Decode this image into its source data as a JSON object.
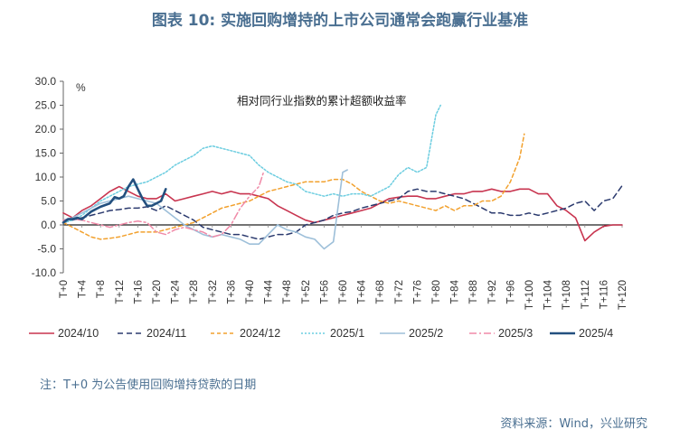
{
  "title": "图表 10: 实施回购增持的上市公司通常会跑赢行业基准",
  "note": "注：T+0 为公告使用回购增持贷款的日期",
  "source": "资料来源：Wind，兴业研究",
  "chart_data": {
    "type": "line",
    "title": "",
    "annotation": "相对同行业指数的累计超额收益率",
    "unit_label": "%",
    "ylim": [
      -10,
      30
    ],
    "yticks": [
      "30.0",
      "25.0",
      "20.0",
      "15.0",
      "10.0",
      "5.0",
      "0.0",
      "-5.0",
      "-10.0"
    ],
    "xlim": [
      0,
      120
    ],
    "xtick_labels": [
      "T+0",
      "T+4",
      "T+8",
      "T+12",
      "T+16",
      "T+20",
      "T+24",
      "T+28",
      "T+32",
      "T+36",
      "T+40",
      "T+44",
      "T+48",
      "T+52",
      "T+56",
      "T+60",
      "T+64",
      "T+68",
      "T+72",
      "T+76",
      "T+80",
      "T+84",
      "T+88",
      "T+92",
      "T+96",
      "T+100",
      "T+104",
      "T+108",
      "T+112",
      "T+116",
      "T+120"
    ],
    "grid": false,
    "legend_position": "bottom",
    "series": [
      {
        "name": "2024/10",
        "color": "#c8344f",
        "dash": "solid",
        "width": 1.6,
        "points": [
          [
            0,
            2.5
          ],
          [
            2,
            1.5
          ],
          [
            4,
            3
          ],
          [
            6,
            4
          ],
          [
            8,
            5.5
          ],
          [
            10,
            7
          ],
          [
            12,
            8
          ],
          [
            14,
            7
          ],
          [
            16,
            6
          ],
          [
            18,
            5.5
          ],
          [
            20,
            5.5
          ],
          [
            22,
            6.5
          ],
          [
            24,
            5
          ],
          [
            26,
            5.5
          ],
          [
            28,
            6
          ],
          [
            30,
            6.5
          ],
          [
            32,
            7
          ],
          [
            34,
            6.5
          ],
          [
            36,
            7
          ],
          [
            38,
            6.5
          ],
          [
            40,
            6.5
          ],
          [
            42,
            6
          ],
          [
            44,
            5.5
          ],
          [
            46,
            4
          ],
          [
            48,
            3
          ],
          [
            50,
            2
          ],
          [
            52,
            1
          ],
          [
            54,
            0.5
          ],
          [
            56,
            1
          ],
          [
            58,
            1.5
          ],
          [
            60,
            2
          ],
          [
            62,
            2.5
          ],
          [
            64,
            3
          ],
          [
            66,
            3.5
          ],
          [
            68,
            4.5
          ],
          [
            70,
            5.5
          ],
          [
            72,
            5.8
          ],
          [
            74,
            6
          ],
          [
            76,
            6
          ],
          [
            78,
            5.5
          ],
          [
            80,
            5.5
          ],
          [
            82,
            6
          ],
          [
            84,
            6.5
          ],
          [
            86,
            6.5
          ],
          [
            88,
            7
          ],
          [
            90,
            7
          ],
          [
            92,
            7.5
          ],
          [
            94,
            7
          ],
          [
            96,
            7
          ],
          [
            98,
            7.5
          ],
          [
            100,
            7.5
          ],
          [
            102,
            6.5
          ],
          [
            104,
            6.5
          ],
          [
            106,
            4
          ],
          [
            108,
            3
          ],
          [
            110,
            1.5
          ],
          [
            112,
            -3.3
          ],
          [
            114,
            -1.5
          ],
          [
            116,
            -0.3
          ],
          [
            118,
            0
          ],
          [
            120,
            0
          ]
        ]
      },
      {
        "name": "2024/11",
        "color": "#2b3a6e",
        "dash": "6,4",
        "width": 1.5,
        "points": [
          [
            0,
            0.5
          ],
          [
            2,
            1
          ],
          [
            4,
            1.5
          ],
          [
            6,
            2
          ],
          [
            8,
            2.5
          ],
          [
            10,
            3
          ],
          [
            12,
            3.2
          ],
          [
            14,
            3.5
          ],
          [
            16,
            3.5
          ],
          [
            18,
            3.8
          ],
          [
            20,
            3
          ],
          [
            22,
            4
          ],
          [
            24,
            3
          ],
          [
            26,
            2
          ],
          [
            28,
            1
          ],
          [
            30,
            -0.5
          ],
          [
            32,
            -1
          ],
          [
            34,
            -1.5
          ],
          [
            36,
            -2
          ],
          [
            38,
            -2
          ],
          [
            40,
            -2.5
          ],
          [
            42,
            -3
          ],
          [
            44,
            -2.5
          ],
          [
            46,
            -2
          ],
          [
            48,
            -2
          ],
          [
            50,
            -1.5
          ],
          [
            52,
            0
          ],
          [
            54,
            0.5
          ],
          [
            56,
            1
          ],
          [
            58,
            2
          ],
          [
            60,
            2.5
          ],
          [
            62,
            2.8
          ],
          [
            64,
            3.5
          ],
          [
            66,
            4
          ],
          [
            68,
            4.5
          ],
          [
            70,
            5
          ],
          [
            72,
            5.5
          ],
          [
            74,
            7
          ],
          [
            76,
            7.5
          ],
          [
            78,
            7
          ],
          [
            80,
            7
          ],
          [
            82,
            6.5
          ],
          [
            84,
            6
          ],
          [
            86,
            5.5
          ],
          [
            88,
            4.5
          ],
          [
            90,
            3.5
          ],
          [
            92,
            2.5
          ],
          [
            94,
            2.5
          ],
          [
            96,
            2
          ],
          [
            98,
            2
          ],
          [
            100,
            2.5
          ],
          [
            102,
            2
          ],
          [
            104,
            2.5
          ],
          [
            106,
            3
          ],
          [
            108,
            3.5
          ],
          [
            110,
            4.5
          ],
          [
            112,
            5
          ],
          [
            114,
            3
          ],
          [
            116,
            5
          ],
          [
            118,
            5.5
          ],
          [
            120,
            8.2
          ]
        ]
      },
      {
        "name": "2024/12",
        "color": "#f2a12e",
        "dash": "4,3",
        "width": 1.5,
        "points": [
          [
            0,
            0.5
          ],
          [
            2,
            -0.5
          ],
          [
            4,
            -1.5
          ],
          [
            6,
            -2.5
          ],
          [
            8,
            -3
          ],
          [
            10,
            -2.8
          ],
          [
            12,
            -2.5
          ],
          [
            14,
            -2
          ],
          [
            16,
            -1.5
          ],
          [
            18,
            -1.5
          ],
          [
            20,
            -1.5
          ],
          [
            22,
            -1
          ],
          [
            24,
            -0.5
          ],
          [
            26,
            0
          ],
          [
            28,
            0.5
          ],
          [
            30,
            1.5
          ],
          [
            32,
            2.5
          ],
          [
            34,
            3.5
          ],
          [
            36,
            4
          ],
          [
            38,
            4.5
          ],
          [
            40,
            5
          ],
          [
            42,
            6
          ],
          [
            44,
            7
          ],
          [
            46,
            7.5
          ],
          [
            48,
            8
          ],
          [
            50,
            8.5
          ],
          [
            52,
            9
          ],
          [
            54,
            9
          ],
          [
            56,
            9
          ],
          [
            58,
            9.5
          ],
          [
            60,
            9.5
          ],
          [
            62,
            8.5
          ],
          [
            64,
            7
          ],
          [
            66,
            6
          ],
          [
            68,
            5
          ],
          [
            70,
            4.5
          ],
          [
            72,
            5
          ],
          [
            74,
            4.5
          ],
          [
            76,
            4
          ],
          [
            78,
            3.5
          ],
          [
            80,
            3
          ],
          [
            82,
            4
          ],
          [
            84,
            3
          ],
          [
            86,
            4
          ],
          [
            88,
            4
          ],
          [
            90,
            5
          ],
          [
            92,
            5
          ],
          [
            94,
            6
          ],
          [
            96,
            9
          ],
          [
            98,
            14
          ],
          [
            99,
            19
          ]
        ]
      },
      {
        "name": "2025/1",
        "color": "#6ccde0",
        "dash": "2,2",
        "width": 1.5,
        "points": [
          [
            0,
            0.5
          ],
          [
            2,
            1
          ],
          [
            4,
            2
          ],
          [
            6,
            3.5
          ],
          [
            8,
            5
          ],
          [
            10,
            6
          ],
          [
            12,
            7
          ],
          [
            14,
            8
          ],
          [
            16,
            8.5
          ],
          [
            18,
            9
          ],
          [
            20,
            10
          ],
          [
            22,
            11
          ],
          [
            24,
            12.5
          ],
          [
            26,
            13.5
          ],
          [
            28,
            14.5
          ],
          [
            30,
            16
          ],
          [
            32,
            16.5
          ],
          [
            34,
            16
          ],
          [
            36,
            15.5
          ],
          [
            38,
            15
          ],
          [
            40,
            14.5
          ],
          [
            42,
            12.5
          ],
          [
            44,
            11
          ],
          [
            46,
            10
          ],
          [
            48,
            9
          ],
          [
            50,
            8.5
          ],
          [
            52,
            7
          ],
          [
            54,
            6.5
          ],
          [
            56,
            6
          ],
          [
            58,
            6.5
          ],
          [
            60,
            6
          ],
          [
            62,
            6.5
          ],
          [
            64,
            6.5
          ],
          [
            66,
            6
          ],
          [
            68,
            7
          ],
          [
            70,
            8
          ],
          [
            72,
            10.5
          ],
          [
            74,
            12
          ],
          [
            76,
            11
          ],
          [
            78,
            12
          ],
          [
            80,
            23
          ],
          [
            81,
            25
          ]
        ]
      },
      {
        "name": "2025/2",
        "color": "#9dbfd9",
        "dash": "solid",
        "width": 1.6,
        "points": [
          [
            0,
            1
          ],
          [
            2,
            1.5
          ],
          [
            4,
            2.5
          ],
          [
            6,
            3.5
          ],
          [
            8,
            4.5
          ],
          [
            10,
            5
          ],
          [
            12,
            5.5
          ],
          [
            14,
            6
          ],
          [
            16,
            5.5
          ],
          [
            18,
            5
          ],
          [
            20,
            4.5
          ],
          [
            22,
            3
          ],
          [
            24,
            1.5
          ],
          [
            26,
            0
          ],
          [
            28,
            -1
          ],
          [
            30,
            -2
          ],
          [
            32,
            -2.5
          ],
          [
            34,
            -2
          ],
          [
            36,
            -2.5
          ],
          [
            38,
            -3
          ],
          [
            40,
            -4
          ],
          [
            42,
            -4
          ],
          [
            44,
            -2
          ],
          [
            46,
            0
          ],
          [
            48,
            -1
          ],
          [
            50,
            -1.5
          ],
          [
            52,
            -2.5
          ],
          [
            54,
            -3
          ],
          [
            56,
            -5
          ],
          [
            58,
            -3.5
          ],
          [
            60,
            11
          ],
          [
            61,
            11.5
          ]
        ]
      },
      {
        "name": "2025/3",
        "color": "#f08aa8",
        "dash": "8,3,2,3",
        "width": 1.5,
        "points": [
          [
            0,
            1
          ],
          [
            2,
            1.2
          ],
          [
            4,
            1
          ],
          [
            6,
            0.5
          ],
          [
            8,
            0
          ],
          [
            10,
            -0.5
          ],
          [
            12,
            0
          ],
          [
            14,
            0.5
          ],
          [
            16,
            0.8
          ],
          [
            18,
            0.5
          ],
          [
            20,
            -1.5
          ],
          [
            22,
            -2
          ],
          [
            24,
            -1
          ],
          [
            26,
            -0.5
          ],
          [
            28,
            -1
          ],
          [
            30,
            -1.5
          ],
          [
            32,
            -2.5
          ],
          [
            34,
            -2
          ],
          [
            36,
            0
          ],
          [
            38,
            3.5
          ],
          [
            40,
            6
          ],
          [
            42,
            8
          ],
          [
            43,
            11
          ]
        ]
      },
      {
        "name": "2025/4",
        "color": "#23507f",
        "dash": "solid",
        "width": 2.6,
        "points": [
          [
            0,
            0.5
          ],
          [
            1,
            1.2
          ],
          [
            2,
            1.2
          ],
          [
            3,
            1.5
          ],
          [
            4,
            1.2
          ],
          [
            5,
            2
          ],
          [
            6,
            2.8
          ],
          [
            8,
            3.8
          ],
          [
            10,
            4.5
          ],
          [
            11,
            5.8
          ],
          [
            12,
            5.5
          ],
          [
            13,
            6
          ],
          [
            14,
            8
          ],
          [
            15,
            9.5
          ],
          [
            16,
            7.5
          ],
          [
            17,
            5.5
          ],
          [
            18,
            4
          ],
          [
            19,
            4
          ],
          [
            20,
            4.5
          ],
          [
            21,
            5
          ],
          [
            22,
            7.5
          ]
        ]
      }
    ]
  }
}
